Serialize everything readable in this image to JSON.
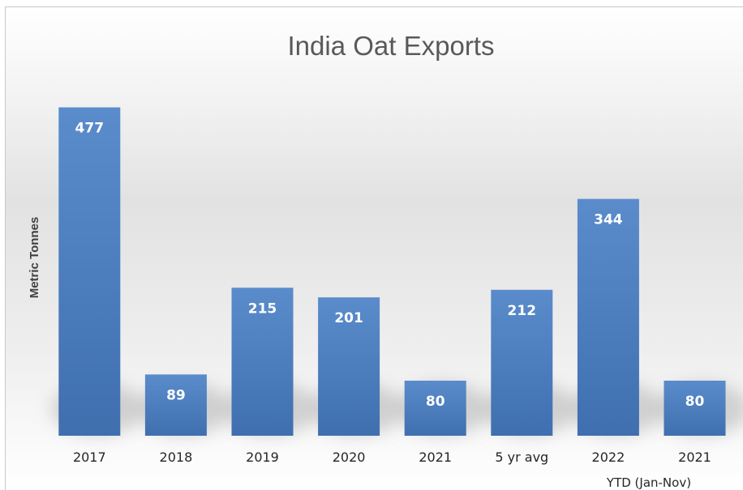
{
  "chart_data": {
    "type": "bar",
    "title": "India Oat Exports",
    "xlabel": "",
    "ylabel": "Metric Tonnes",
    "categories": [
      "2017",
      "2018",
      "2019",
      "2020",
      "2021",
      "5 yr avg",
      "2022",
      "2021"
    ],
    "values": [
      477,
      89,
      215,
      201,
      80,
      212,
      344,
      80
    ],
    "data_labels": [
      "477",
      "89",
      "215",
      "201",
      "80",
      "212",
      "344",
      "80"
    ],
    "annotation": "YTD (Jan-Nov)",
    "ylim": [
      0,
      500
    ],
    "grid": false,
    "legend": "none",
    "colors": {
      "bar": "#4f81bd",
      "bar_dark": "#3a6aa6",
      "label": "#ffffff"
    }
  }
}
